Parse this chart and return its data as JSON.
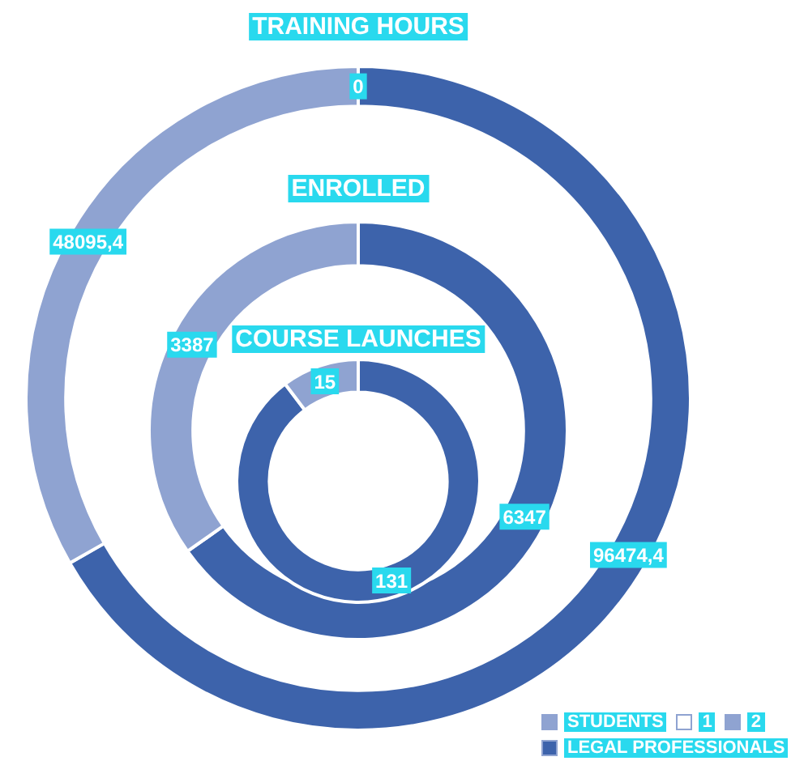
{
  "chart_data": {
    "type": "donut",
    "categories": [
      "LEGAL PROFESSIONALS",
      "STUDENTS",
      "1",
      "2"
    ],
    "colors": [
      "#3d63ab",
      "#8fa3d1",
      "#ffffff",
      "#8fa3d1"
    ],
    "legend": "bottom right",
    "series": [
      {
        "name": "TRAINING HOURS",
        "values": [
          96474.4,
          48095.4,
          0,
          null
        ],
        "value_labels": [
          "96474,4",
          "48095,4",
          "0",
          null
        ]
      },
      {
        "name": "ENROLLED",
        "values": [
          6347,
          3387,
          null,
          null
        ],
        "value_labels": [
          "6347",
          "3387",
          null,
          null
        ]
      },
      {
        "name": "COURSE LAUNCHES",
        "values": [
          131,
          15,
          null,
          null
        ],
        "value_labels": [
          "131",
          "15",
          null,
          null
        ]
      }
    ]
  }
}
